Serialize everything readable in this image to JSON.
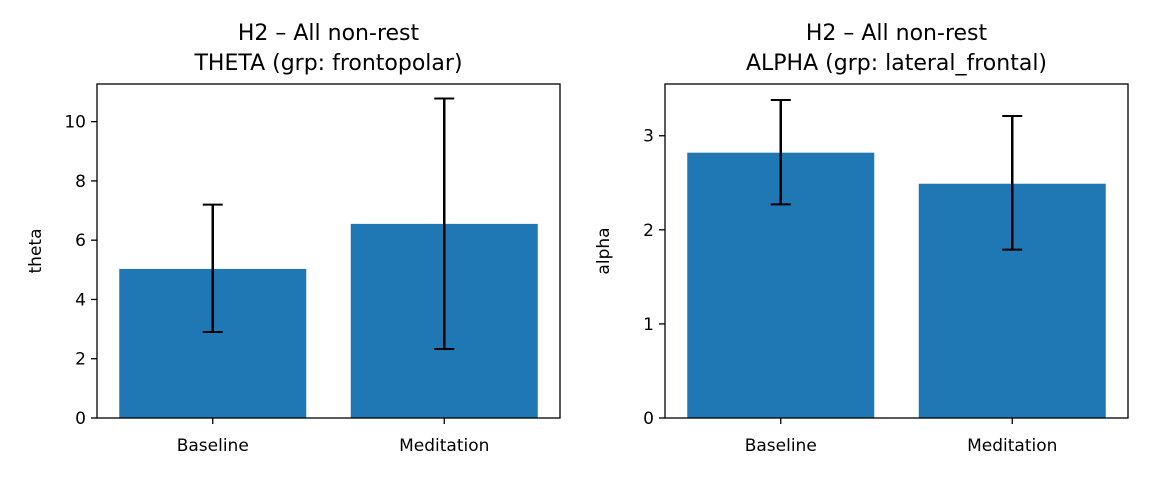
{
  "chart_data": [
    {
      "type": "bar",
      "title": "H2 – All non-rest",
      "subtitle": "THETA (grp: frontopolar)",
      "xlabel": "",
      "ylabel": "theta",
      "categories": [
        "Baseline",
        "Meditation"
      ],
      "values": [
        5.03,
        6.55
      ],
      "error_low": [
        2.9,
        2.33
      ],
      "error_high": [
        7.2,
        10.78
      ],
      "ylim": [
        0,
        11.27
      ],
      "yticks": [
        0,
        2,
        4,
        6,
        8,
        10
      ],
      "ytick_labels": [
        "0",
        "2",
        "4",
        "6",
        "8",
        "10"
      ],
      "bar_color": "#1f77b4",
      "error_color": "#000000",
      "grid": false
    },
    {
      "type": "bar",
      "title": "H2 – All non-rest",
      "subtitle": "ALPHA (grp: lateral_frontal)",
      "xlabel": "",
      "ylabel": "alpha",
      "categories": [
        "Baseline",
        "Meditation"
      ],
      "values": [
        2.82,
        2.49
      ],
      "error_low": [
        2.27,
        1.79
      ],
      "error_high": [
        3.38,
        3.21
      ],
      "ylim": [
        0,
        3.55
      ],
      "yticks": [
        0,
        1,
        2,
        3
      ],
      "ytick_labels": [
        "0",
        "1",
        "2",
        "3"
      ],
      "bar_color": "#1f77b4",
      "error_color": "#000000",
      "grid": false
    }
  ]
}
